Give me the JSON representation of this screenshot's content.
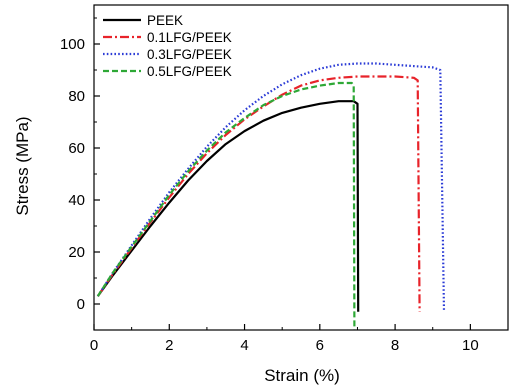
{
  "chart_data": {
    "type": "line",
    "title": "",
    "xlabel": "Strain (%)",
    "ylabel": "Stress (MPa)",
    "xlim": [
      0,
      11
    ],
    "ylim": [
      -10,
      115
    ],
    "xticks": [
      0,
      2,
      4,
      6,
      8,
      10
    ],
    "yticks": [
      0,
      20,
      40,
      60,
      80,
      100
    ],
    "grid": false,
    "legend_position": "top-left",
    "series": [
      {
        "name": "PEEK",
        "color": "#000000",
        "dash": "solid",
        "points": [
          [
            0.1,
            3
          ],
          [
            0.5,
            11
          ],
          [
            1.0,
            20.5
          ],
          [
            1.5,
            30
          ],
          [
            2.0,
            39
          ],
          [
            2.5,
            47.5
          ],
          [
            3.0,
            55
          ],
          [
            3.5,
            61.5
          ],
          [
            4.0,
            66.5
          ],
          [
            4.5,
            70.5
          ],
          [
            5.0,
            73.5
          ],
          [
            5.5,
            75.5
          ],
          [
            6.0,
            77
          ],
          [
            6.5,
            78
          ],
          [
            6.9,
            78
          ],
          [
            7.0,
            77
          ],
          [
            7.02,
            -3
          ]
        ]
      },
      {
        "name": "0.1LFG/PEEK",
        "color": "#e8232a",
        "dash": "dashdot",
        "points": [
          [
            0.1,
            3
          ],
          [
            0.5,
            11.5
          ],
          [
            1.0,
            21.5
          ],
          [
            1.5,
            31.5
          ],
          [
            2.0,
            41
          ],
          [
            2.5,
            50
          ],
          [
            3.0,
            58
          ],
          [
            3.5,
            65
          ],
          [
            4.0,
            71
          ],
          [
            4.5,
            76
          ],
          [
            5.0,
            80.5
          ],
          [
            5.5,
            84
          ],
          [
            6.0,
            86
          ],
          [
            6.5,
            87
          ],
          [
            7.0,
            87.5
          ],
          [
            7.5,
            87.5
          ],
          [
            8.0,
            87.5
          ],
          [
            8.5,
            87
          ],
          [
            8.6,
            86
          ],
          [
            8.65,
            -3
          ]
        ]
      },
      {
        "name": "0.3LFG/PEEK",
        "color": "#2b3bd6",
        "dash": "dotted",
        "points": [
          [
            0.1,
            3
          ],
          [
            0.5,
            12
          ],
          [
            1.0,
            22.5
          ],
          [
            1.5,
            33
          ],
          [
            2.0,
            43
          ],
          [
            2.5,
            52
          ],
          [
            3.0,
            60.5
          ],
          [
            3.5,
            68
          ],
          [
            4.0,
            74.5
          ],
          [
            4.5,
            80
          ],
          [
            5.0,
            84.5
          ],
          [
            5.5,
            88
          ],
          [
            6.0,
            90.5
          ],
          [
            6.5,
            92
          ],
          [
            7.0,
            92.5
          ],
          [
            7.5,
            92.5
          ],
          [
            8.0,
            92
          ],
          [
            8.5,
            91.5
          ],
          [
            9.0,
            91
          ],
          [
            9.2,
            90
          ],
          [
            9.3,
            -3
          ]
        ]
      },
      {
        "name": "0.5LFG/PEEK",
        "color": "#2ea836",
        "dash": "dashed",
        "points": [
          [
            0.1,
            3
          ],
          [
            0.5,
            12
          ],
          [
            1.0,
            22
          ],
          [
            1.5,
            32
          ],
          [
            2.0,
            42
          ],
          [
            2.5,
            51
          ],
          [
            3.0,
            59
          ],
          [
            3.5,
            66
          ],
          [
            4.0,
            71.5
          ],
          [
            4.5,
            76.5
          ],
          [
            5.0,
            80
          ],
          [
            5.5,
            82.5
          ],
          [
            6.0,
            84
          ],
          [
            6.5,
            85
          ],
          [
            6.85,
            85
          ],
          [
            6.9,
            84
          ],
          [
            6.92,
            -10
          ]
        ]
      }
    ]
  }
}
